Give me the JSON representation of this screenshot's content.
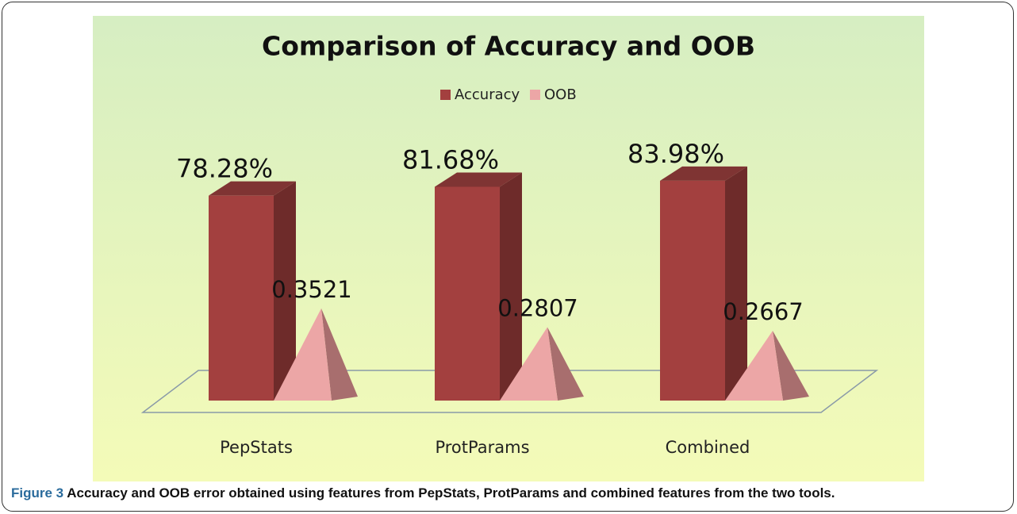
{
  "chart_data": {
    "type": "bar3d",
    "title": "Comparison of Accuracy and OOB",
    "categories": [
      "PepStats",
      "ProtParams",
      "Combined"
    ],
    "series": [
      {
        "name": "Accuracy",
        "color": "#a3403f",
        "values": [
          78.28,
          81.68,
          83.98
        ],
        "value_labels": [
          "78.28%",
          "81.68%",
          "83.98%"
        ]
      },
      {
        "name": "OOB",
        "color": "#eca6a6",
        "values": [
          0.3521,
          0.2807,
          0.2667
        ],
        "axis": "y2"
      }
    ],
    "ylim": [
      0,
      100
    ],
    "y2lim": [
      0,
      1
    ],
    "legend": "top"
  },
  "figure_label": "Figure 3",
  "caption": "Accuracy and OOB error obtained using features from PepStats, ProtParams and combined features from the two tools."
}
